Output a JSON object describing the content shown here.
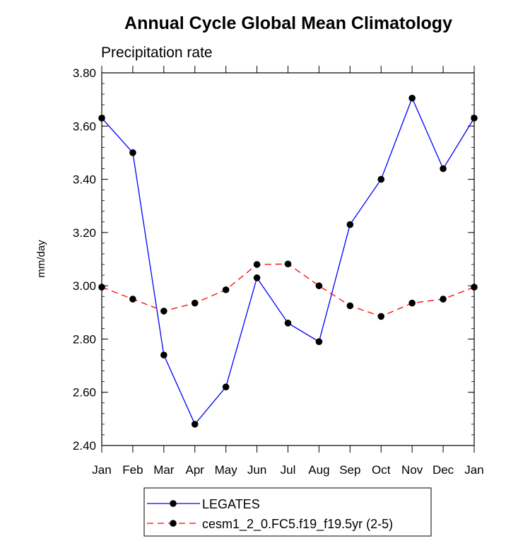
{
  "chart_data": {
    "type": "line",
    "title": "Annual Cycle Global Mean Climatology",
    "subtitle": "Precipitation rate",
    "xlabel": "",
    "ylabel": "mm/day",
    "categories": [
      "Jan",
      "Feb",
      "Mar",
      "Apr",
      "May",
      "Jun",
      "Jul",
      "Aug",
      "Sep",
      "Oct",
      "Nov",
      "Dec",
      "Jan"
    ],
    "ylim": [
      2.4,
      3.8
    ],
    "yticks": [
      "2.40",
      "2.60",
      "2.80",
      "3.00",
      "3.20",
      "3.40",
      "3.60",
      "3.80"
    ],
    "series": [
      {
        "name": "LEGATES",
        "color": "#0000ff",
        "style": "solid",
        "values": [
          3.63,
          3.5,
          2.74,
          2.48,
          2.62,
          3.03,
          2.86,
          2.79,
          3.23,
          3.4,
          3.705,
          3.44,
          3.63
        ]
      },
      {
        "name": "cesm1_2_0.FC5.f19_f19.5yr (2-5)",
        "color": "#ff0000",
        "style": "dashed",
        "values": [
          2.995,
          2.95,
          2.905,
          2.935,
          2.985,
          3.08,
          3.082,
          3.0,
          2.925,
          2.885,
          2.935,
          2.95,
          2.995
        ]
      }
    ],
    "legend_position": "bottom"
  }
}
